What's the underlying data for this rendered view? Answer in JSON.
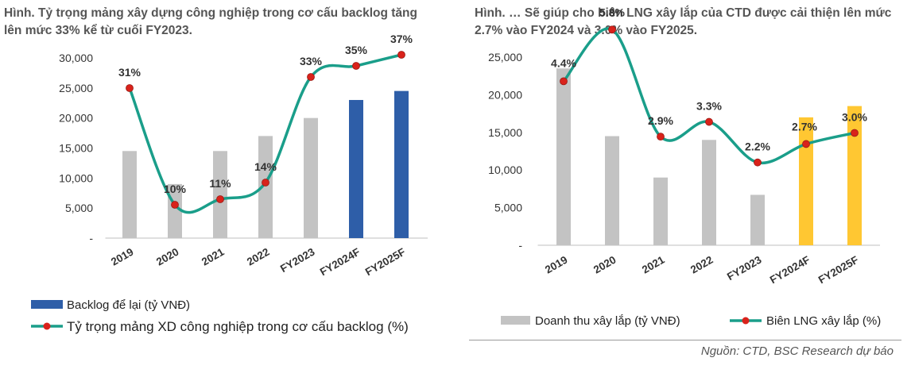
{
  "chart_data": [
    {
      "type": "bar+line",
      "title": "Hình. Tỷ trọng mảng xây dựng công nghiệp trong cơ cấu backlog tăng lên mức 33% kể từ cuối FY2023.",
      "categories": [
        "2019",
        "2020",
        "2021",
        "2022",
        "FY2023",
        "FY2024F",
        "FY2025F"
      ],
      "y_ticks": [
        "30,000",
        "25,000",
        "20,000",
        "15,000",
        "10,000",
        "5,000",
        "-"
      ],
      "ylim": [
        0,
        30000
      ],
      "series": [
        {
          "name": "Backlog để lại (tỷ VNĐ)",
          "kind": "bar",
          "values": [
            14500,
            9000,
            14500,
            17000,
            20000,
            23000,
            24500
          ],
          "colors": [
            "#c3c3c3",
            "#c3c3c3",
            "#c3c3c3",
            "#c3c3c3",
            "#c3c3c3",
            "#2e5ea8",
            "#2e5ea8"
          ]
        },
        {
          "name": "Tỷ trọng mảng XD công nghiệp trong cơ cấu backlog (%)",
          "kind": "line",
          "values": [
            31,
            10,
            11,
            14,
            33,
            35,
            37
          ],
          "labels": [
            "31%",
            "10%",
            "11%",
            "14%",
            "33%",
            "35%",
            "37%"
          ],
          "line_color": "#1a9e8a",
          "marker_color": "#d9221b"
        }
      ],
      "legend": {
        "bar_label": "Backlog để lại (tỷ VNĐ)",
        "line_label": "Tỷ trọng mảng XD công nghiệp trong cơ cấu backlog (%)",
        "bar_color": "#2e5ea8"
      }
    },
    {
      "type": "bar+line",
      "title": "Hình. … Sẽ giúp cho biên LNG xây lắp của CTD được cải thiện lên mức 2.7% vào FY2024 và 3.0% vào FY2025.",
      "categories": [
        "2019",
        "2020",
        "2021",
        "2022",
        "FY2023",
        "FY2024F",
        "FY2025F"
      ],
      "y_ticks": [
        "25,000",
        "20,000",
        "15,000",
        "10,000",
        "5,000",
        "-"
      ],
      "ylim": [
        0,
        25000
      ],
      "series": [
        {
          "name": "Doanh thu xây lắp (tỷ VNĐ)",
          "kind": "bar",
          "values": [
            23500,
            14500,
            9000,
            14000,
            6700,
            17000,
            18500
          ],
          "colors": [
            "#c3c3c3",
            "#c3c3c3",
            "#c3c3c3",
            "#c3c3c3",
            "#c3c3c3",
            "#ffc732",
            "#ffc732"
          ]
        },
        {
          "name": "Biên LNG xây lắp (%)",
          "kind": "line",
          "values": [
            4.4,
            5.8,
            2.9,
            3.3,
            2.2,
            2.7,
            3.0
          ],
          "labels": [
            "4.4%",
            "5.8%",
            "2.9%",
            "3.3%",
            "2.2%",
            "2.7%",
            "3.0%"
          ],
          "line_color": "#1a9e8a",
          "marker_color": "#d9221b"
        }
      ],
      "legend": {
        "bar_label": "Doanh thu xây lắp (tỷ VNĐ)",
        "line_label": "Biên LNG xây lắp (%)",
        "bar_color": "#c3c3c3"
      }
    }
  ],
  "source": "Nguồn: CTD, BSC Research dự báo"
}
